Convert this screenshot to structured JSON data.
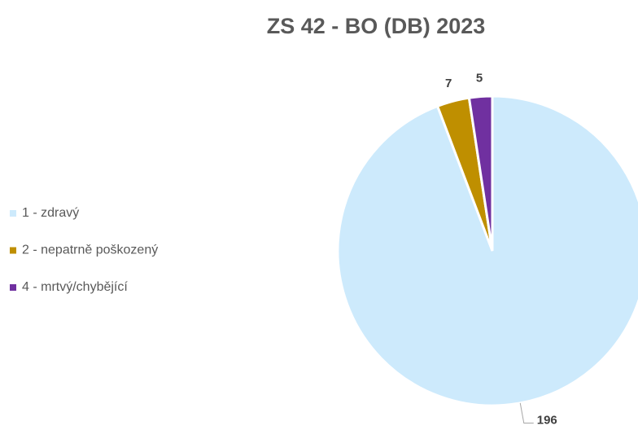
{
  "chart_data": {
    "type": "pie",
    "title": "ZS 42 - BO (DB) 2023",
    "categories": [
      "1 - zdravý",
      "2 - nepatrně poškozený",
      "4 - mrtvý/chybějící"
    ],
    "values": [
      196,
      7,
      5
    ],
    "colors": [
      "#cdeafc",
      "#bf8f00",
      "#7030a0"
    ],
    "legend": "left"
  }
}
